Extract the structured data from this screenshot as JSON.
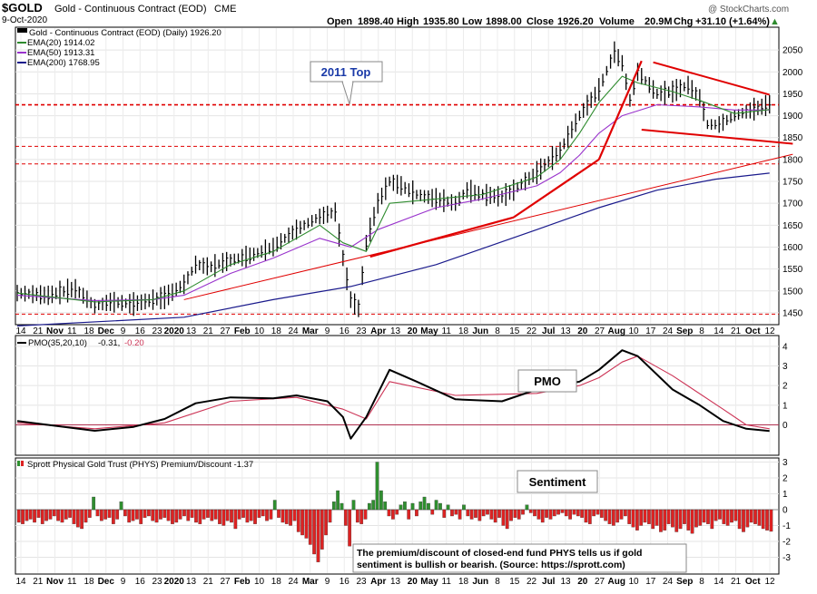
{
  "header": {
    "symbol": "$GOLD",
    "name": "Gold - Continuous Contract (EOD)",
    "exchange": "CME",
    "date": "9-Oct-2020",
    "watermark": "@ StockCharts.com",
    "open_label": "Open",
    "open": "1898.40",
    "high_label": "High",
    "high": "1935.80",
    "low_label": "Low",
    "low": "1898.00",
    "close_label": "Close",
    "close": "1926.20",
    "volume_label": "Volume",
    "volume": "20.9M",
    "chg_label": "Chg",
    "chg": "+31.10 (+1.64%)",
    "chg_arrow": "▲"
  },
  "price_legend": {
    "title": "Gold - Continuous Contract (EOD) (Daily) 1926.20",
    "ema20": "EMA(20) 1914.02",
    "ema50": "EMA(50) 1913.31",
    "ema200": "EMA(200) 1768.95"
  },
  "pmo_legend": {
    "label": "PMO(35,20,10)",
    "v1": "-0.31,",
    "v2": "-0.20"
  },
  "sent_legend": {
    "label": "Sprott Physical Gold Trust (PHYS) Premium/Discount -1.37"
  },
  "annotations": {
    "top2011": "2011 Top",
    "pmo": "PMO",
    "sentiment": "Sentiment",
    "note_line1": "The premium/discount of closed-end fund PHYS tells us if gold",
    "note_line2": "sentiment is bullish or bearish. (Source: https://sprott.com)"
  },
  "colors": {
    "price": "#000000",
    "ema20": "#2e8b2e",
    "ema50": "#9933cc",
    "ema200": "#1a1a8c",
    "trend": "#e00000",
    "pmo": "#000000",
    "pmo_signal": "#cc3355",
    "sent_pos": "#2f8f2f",
    "sent_neg": "#dd2222",
    "label_blue": "#1a3aa8"
  },
  "chart_data": [
    {
      "type": "line",
      "title": "Gold - Continuous Contract (EOD) (Daily)",
      "ylim": [
        1425,
        2100
      ],
      "y_ticks": [
        1450,
        1500,
        1550,
        1600,
        1650,
        1700,
        1750,
        1800,
        1850,
        1900,
        1950,
        2000,
        2050
      ],
      "x_labels": [
        "14",
        "21",
        "Nov",
        "11",
        "18",
        "Dec",
        "9",
        "16",
        "23",
        "2020",
        "13",
        "21",
        "27",
        "Feb",
        "10",
        "18",
        "24",
        "Mar",
        "9",
        "16",
        "23",
        "Apr",
        "13",
        "20",
        "May",
        "11",
        "18",
        "Jun",
        "8",
        "15",
        "22",
        "Jul",
        "13",
        "20",
        "27",
        "Aug",
        "10",
        "17",
        "24",
        "Sep",
        "8",
        "14",
        "21",
        "Oct",
        "12"
      ],
      "price_points": [
        [
          0,
          1495
        ],
        [
          8,
          1490
        ],
        [
          15,
          1505
        ],
        [
          20,
          1465
        ],
        [
          24,
          1475
        ],
        [
          30,
          1470
        ],
        [
          35,
          1480
        ],
        [
          38,
          1485
        ],
        [
          43,
          1515
        ],
        [
          46,
          1560
        ],
        [
          50,
          1555
        ],
        [
          55,
          1570
        ],
        [
          60,
          1580
        ],
        [
          66,
          1600
        ],
        [
          72,
          1640
        ],
        [
          78,
          1670
        ],
        [
          82,
          1680
        ],
        [
          84,
          1575
        ],
        [
          86,
          1480
        ],
        [
          88,
          1460
        ],
        [
          90,
          1610
        ],
        [
          93,
          1700
        ],
        [
          96,
          1750
        ],
        [
          99,
          1740
        ],
        [
          103,
          1720
        ],
        [
          108,
          1710
        ],
        [
          113,
          1700
        ],
        [
          116,
          1730
        ],
        [
          120,
          1720
        ],
        [
          125,
          1715
        ],
        [
          128,
          1730
        ],
        [
          134,
          1770
        ],
        [
          140,
          1820
        ],
        [
          145,
          1900
        ],
        [
          150,
          1960
        ],
        [
          154,
          2045
        ],
        [
          156,
          2020
        ],
        [
          158,
          1935
        ],
        [
          160,
          2000
        ],
        [
          165,
          1950
        ],
        [
          169,
          1955
        ],
        [
          173,
          1970
        ],
        [
          176,
          1940
        ],
        [
          178,
          1880
        ],
        [
          181,
          1880
        ],
        [
          185,
          1900
        ],
        [
          190,
          1915
        ],
        [
          194,
          1926
        ]
      ],
      "ema20_points": [
        [
          0,
          1495
        ],
        [
          20,
          1475
        ],
        [
          35,
          1480
        ],
        [
          43,
          1500
        ],
        [
          55,
          1560
        ],
        [
          66,
          1590
        ],
        [
          78,
          1650
        ],
        [
          84,
          1610
        ],
        [
          90,
          1590
        ],
        [
          96,
          1700
        ],
        [
          108,
          1710
        ],
        [
          120,
          1720
        ],
        [
          134,
          1760
        ],
        [
          140,
          1800
        ],
        [
          145,
          1860
        ],
        [
          150,
          1930
        ],
        [
          156,
          1990
        ],
        [
          160,
          1975
        ],
        [
          169,
          1955
        ],
        [
          176,
          1935
        ],
        [
          185,
          1905
        ],
        [
          194,
          1914
        ]
      ],
      "ema50_points": [
        [
          0,
          1490
        ],
        [
          20,
          1478
        ],
        [
          35,
          1480
        ],
        [
          43,
          1490
        ],
        [
          55,
          1540
        ],
        [
          66,
          1575
        ],
        [
          78,
          1620
        ],
        [
          86,
          1600
        ],
        [
          93,
          1640
        ],
        [
          108,
          1690
        ],
        [
          120,
          1710
        ],
        [
          134,
          1740
        ],
        [
          140,
          1770
        ],
        [
          145,
          1810
        ],
        [
          150,
          1860
        ],
        [
          156,
          1900
        ],
        [
          165,
          1925
        ],
        [
          176,
          1920
        ],
        [
          185,
          1913
        ],
        [
          194,
          1913
        ]
      ],
      "ema200_points": [
        [
          0,
          1420
        ],
        [
          43,
          1440
        ],
        [
          66,
          1480
        ],
        [
          86,
          1510
        ],
        [
          108,
          1560
        ],
        [
          134,
          1640
        ],
        [
          150,
          1690
        ],
        [
          165,
          1730
        ],
        [
          180,
          1755
        ],
        [
          194,
          1769
        ]
      ],
      "reference_lines": [
        1925,
        1830,
        1790,
        1447
      ]
    },
    {
      "type": "line",
      "title": "PMO(35,20,10)",
      "ylim": [
        -1.5,
        4.5
      ],
      "y_ticks": [
        0,
        1,
        2,
        3,
        4
      ],
      "pmo_points": [
        [
          0,
          0.2
        ],
        [
          10,
          -0.05
        ],
        [
          20,
          -0.3
        ],
        [
          30,
          -0.1
        ],
        [
          38,
          0.3
        ],
        [
          46,
          1.1
        ],
        [
          55,
          1.4
        ],
        [
          66,
          1.35
        ],
        [
          72,
          1.5
        ],
        [
          80,
          1.2
        ],
        [
          84,
          0.4
        ],
        [
          86,
          -0.7
        ],
        [
          90,
          0.4
        ],
        [
          96,
          2.8
        ],
        [
          103,
          2.2
        ],
        [
          113,
          1.3
        ],
        [
          125,
          1.2
        ],
        [
          134,
          1.8
        ],
        [
          145,
          2.2
        ],
        [
          150,
          2.8
        ],
        [
          156,
          3.8
        ],
        [
          160,
          3.5
        ],
        [
          169,
          1.8
        ],
        [
          176,
          1.0
        ],
        [
          182,
          0.2
        ],
        [
          188,
          -0.2
        ],
        [
          194,
          -0.31
        ]
      ],
      "signal_points": [
        [
          0,
          0.1
        ],
        [
          20,
          -0.2
        ],
        [
          38,
          0.1
        ],
        [
          55,
          1.2
        ],
        [
          72,
          1.4
        ],
        [
          84,
          0.8
        ],
        [
          90,
          0.3
        ],
        [
          96,
          2.2
        ],
        [
          113,
          1.5
        ],
        [
          134,
          1.6
        ],
        [
          145,
          2.0
        ],
        [
          150,
          2.4
        ],
        [
          156,
          3.2
        ],
        [
          160,
          3.5
        ],
        [
          169,
          2.5
        ],
        [
          182,
          0.8
        ],
        [
          188,
          0.0
        ],
        [
          194,
          -0.2
        ]
      ]
    },
    {
      "type": "bar",
      "title": "Sprott Physical Gold Trust (PHYS) Premium/Discount",
      "ylim": [
        -4,
        3.2
      ],
      "y_ticks": [
        -3,
        -2,
        -1,
        0,
        1,
        2,
        3
      ],
      "values": [
        -0.8,
        -0.9,
        -0.7,
        -0.6,
        -0.8,
        -0.5,
        -0.9,
        -0.7,
        -0.6,
        -0.4,
        -0.7,
        -0.8,
        -0.6,
        -0.5,
        -0.9,
        -1.1,
        -1.2,
        -0.8,
        -0.5,
        0.8,
        -0.4,
        -0.7,
        -0.6,
        -0.5,
        -0.9,
        -0.6,
        0.5,
        -0.4,
        -0.8,
        -0.7,
        -0.6,
        -0.9,
        -0.5,
        -0.4,
        -0.7,
        -0.8,
        -0.6,
        -0.5,
        -0.7,
        -0.9,
        -0.8,
        -0.6,
        -0.4,
        -0.7,
        -0.5,
        -0.8,
        -0.9,
        -0.6,
        -0.5,
        -0.7,
        -0.6,
        -0.9,
        -1.0,
        -0.7,
        -0.8,
        -1.2,
        -0.6,
        -0.5,
        -0.8,
        -0.7,
        -0.9,
        -0.5,
        -0.4,
        -0.7,
        -0.6,
        0.6,
        -0.5,
        -0.8,
        -0.9,
        -1.0,
        -0.7,
        -1.4,
        -1.6,
        -1.8,
        -2.2,
        -2.8,
        -3.3,
        -2.5,
        -1.6,
        -0.8,
        0.5,
        1.2,
        0.4,
        -1.0,
        -2.3,
        0.6,
        -0.8,
        -0.9,
        -0.6,
        0.4,
        0.6,
        3.0,
        1.2,
        0.5,
        -0.4,
        -0.6,
        -0.3,
        0.3,
        0.5,
        -0.6,
        0.4,
        -0.4,
        0.5,
        0.8,
        0.4,
        -0.3,
        0.6,
        0.4,
        -0.5,
        0.3,
        -0.4,
        -0.3,
        -0.6,
        0.3,
        -0.4,
        -0.6,
        -0.5,
        -0.7,
        -0.4,
        -0.3,
        -0.6,
        -0.8,
        -0.5,
        -1.0,
        -1.2,
        -0.7,
        -0.5,
        -0.6,
        -0.3,
        0.3,
        -0.2,
        -0.4,
        -0.6,
        -0.8,
        -0.5,
        -0.6,
        -0.4,
        -0.3,
        -0.2,
        -0.4,
        -0.6,
        -0.3,
        -0.4,
        -0.5,
        -0.8,
        -0.9,
        -0.4,
        -0.3,
        -0.5,
        -0.7,
        -0.9,
        -1.0,
        -0.8,
        -0.6,
        -0.4,
        -0.9,
        -1.1,
        -1.3,
        -1.0,
        -0.8,
        -0.9,
        -1.2,
        -1.0,
        -1.4,
        -1.3,
        -0.9,
        -1.1,
        -1.4,
        -1.2,
        -0.9,
        -1.3,
        -1.5,
        -1.1,
        -1.0,
        -0.8,
        -0.9,
        -1.2,
        -0.7,
        -0.6,
        -0.9,
        -1.0,
        -0.8,
        -0.7,
        -1.2,
        -1.4,
        -1.1,
        -0.8,
        -0.9,
        -1.0,
        -1.2,
        -1.3,
        -1.37
      ]
    }
  ]
}
